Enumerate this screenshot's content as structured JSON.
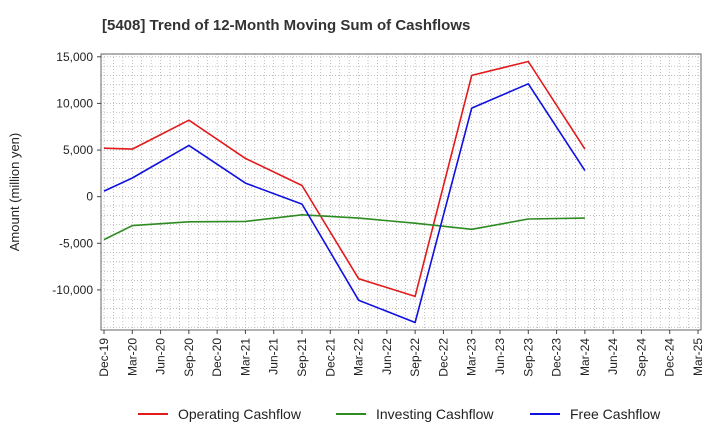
{
  "chart_data": {
    "type": "line",
    "title": "[5408]  Trend of 12-Month Moving Sum of Cashflows",
    "ylabel": "Amount (million yen)",
    "xlabel": "",
    "ylim": [
      -14300,
      15300
    ],
    "yticks": [
      15000,
      10000,
      5000,
      0,
      -5000,
      -10000
    ],
    "ytick_labels": [
      "15,000",
      "10,000",
      "5,000",
      "0",
      "-5,000",
      "-10,000"
    ],
    "categories": [
      "Dec-19",
      "Mar-20",
      "Jun-20",
      "Sep-20",
      "Dec-20",
      "Mar-21",
      "Jun-21",
      "Sep-21",
      "Dec-21",
      "Mar-22",
      "Jun-22",
      "Sep-22",
      "Dec-22",
      "Mar-23",
      "Jun-23",
      "Sep-23",
      "Dec-23",
      "Mar-24",
      "Jun-24",
      "Sep-24",
      "Dec-24",
      "Mar-25"
    ],
    "grid": true,
    "legend_position": "bottom",
    "series": [
      {
        "name": "Operating Cashflow",
        "color": "#e31a1c",
        "values": [
          5200,
          5100,
          null,
          8200,
          null,
          4100,
          null,
          1200,
          null,
          -8800,
          null,
          -10700,
          null,
          13000,
          null,
          14500,
          null,
          5100,
          null,
          null,
          null,
          null
        ]
      },
      {
        "name": "Investing Cashflow",
        "color": "#2e8b22",
        "values": [
          -4600,
          -3100,
          null,
          -2700,
          null,
          -2650,
          null,
          -1950,
          null,
          -2300,
          null,
          -2850,
          null,
          -3500,
          null,
          -2400,
          null,
          -2300,
          null,
          null,
          null,
          null
        ]
      },
      {
        "name": "Free Cashflow",
        "color": "#1010e0",
        "values": [
          600,
          2000,
          null,
          5500,
          null,
          1450,
          null,
          -800,
          null,
          -11100,
          null,
          -13500,
          null,
          9500,
          null,
          12100,
          null,
          2800,
          null,
          null,
          null,
          null
        ]
      }
    ]
  }
}
